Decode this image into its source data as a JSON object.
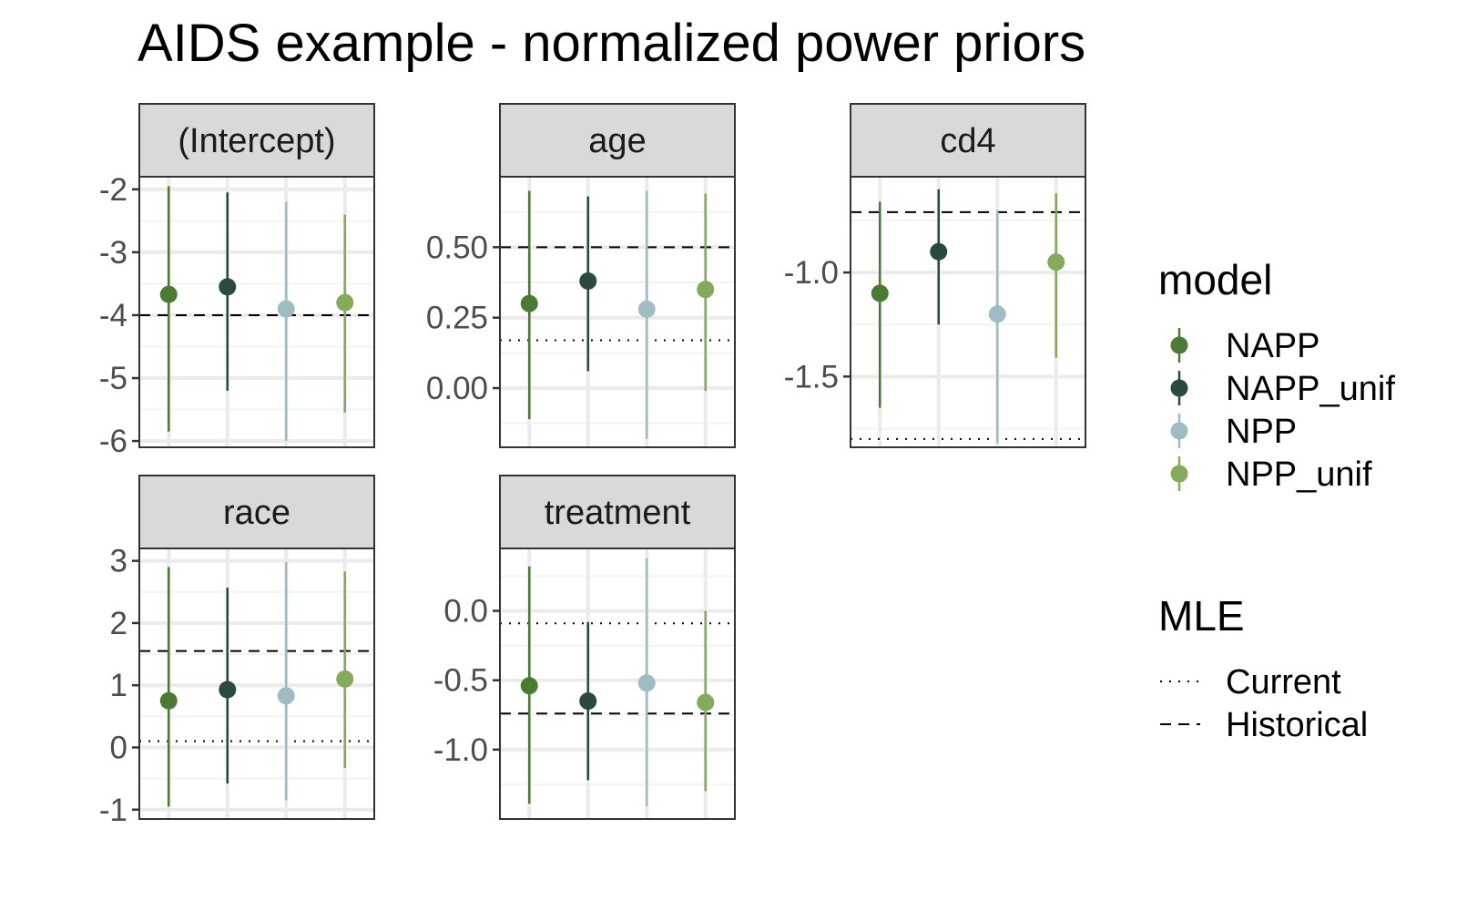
{
  "title": "AIDS example - normalized power priors",
  "colors": {
    "NAPP": "#4a7a34",
    "NAPP_unif": "#2a4a3c",
    "NPP": "#9fbcc2",
    "NPP_unif": "#86aa5c",
    "reference": "#000000",
    "strip_fill": "#d9d9d9",
    "grid_major": "#ebebeb",
    "grid_minor": "#f3f3f3",
    "border": "#333333"
  },
  "chart_data": {
    "type": "pointrange",
    "facet_by": "parameter",
    "models": [
      "NAPP",
      "NAPP_unif",
      "NPP",
      "NPP_unif"
    ],
    "legend": {
      "placement": "right",
      "model_title": "model",
      "model_entries": [
        "NAPP",
        "NAPP_unif",
        "NPP",
        "NPP_unif"
      ],
      "mle_title": "MLE",
      "mle_entries": [
        {
          "label": "Current",
          "linetype": "dotted"
        },
        {
          "label": "Historical",
          "linetype": "dashed"
        }
      ]
    },
    "panels": [
      {
        "name": "(Intercept)",
        "ylim": [
          -6.1,
          -1.8
        ],
        "yticks": [
          -2,
          -3,
          -4,
          -5,
          -6
        ],
        "ytick_labels": [
          "-2",
          "-3",
          "-4",
          "-5",
          "-6"
        ],
        "mle_current": null,
        "mle_historical": -4.0,
        "series": [
          {
            "model": "NAPP",
            "estimate": -3.67,
            "lower": -5.85,
            "upper": -1.95
          },
          {
            "model": "NAPP_unif",
            "estimate": -3.55,
            "lower": -5.2,
            "upper": -2.05
          },
          {
            "model": "NPP",
            "estimate": -3.9,
            "lower": -6.0,
            "upper": -2.2
          },
          {
            "model": "NPP_unif",
            "estimate": -3.8,
            "lower": -5.55,
            "upper": -2.4
          }
        ]
      },
      {
        "name": "age",
        "ylim": [
          -0.21,
          0.75
        ],
        "yticks": [
          0.5,
          0.25,
          0.0
        ],
        "ytick_labels": [
          "0.50",
          "0.25",
          "0.00"
        ],
        "mle_current": 0.17,
        "mle_historical": 0.5,
        "series": [
          {
            "model": "NAPP",
            "estimate": 0.3,
            "lower": -0.11,
            "upper": 0.7
          },
          {
            "model": "NAPP_unif",
            "estimate": 0.38,
            "lower": 0.06,
            "upper": 0.68
          },
          {
            "model": "NPP",
            "estimate": 0.28,
            "lower": -0.18,
            "upper": 0.7
          },
          {
            "model": "NPP_unif",
            "estimate": 0.35,
            "lower": -0.01,
            "upper": 0.69
          }
        ]
      },
      {
        "name": "cd4",
        "ylim": [
          -1.84,
          -0.54
        ],
        "yticks": [
          -1.0,
          -1.5
        ],
        "ytick_labels": [
          "-1.0",
          "-1.5"
        ],
        "mle_current": -1.8,
        "mle_historical": -0.71,
        "series": [
          {
            "model": "NAPP",
            "estimate": -1.1,
            "lower": -1.65,
            "upper": -0.66
          },
          {
            "model": "NAPP_unif",
            "estimate": -0.9,
            "lower": -1.25,
            "upper": -0.6
          },
          {
            "model": "NPP",
            "estimate": -1.2,
            "lower": -1.82,
            "upper": -0.7
          },
          {
            "model": "NPP_unif",
            "estimate": -0.95,
            "lower": -1.41,
            "upper": -0.62
          }
        ]
      },
      {
        "name": "race",
        "ylim": [
          -1.15,
          3.2
        ],
        "yticks": [
          3,
          2,
          1,
          0,
          -1
        ],
        "ytick_labels": [
          "3",
          "2",
          "1",
          "0",
          "-1"
        ],
        "mle_current": 0.1,
        "mle_historical": 1.55,
        "series": [
          {
            "model": "NAPP",
            "estimate": 0.75,
            "lower": -0.95,
            "upper": 2.9
          },
          {
            "model": "NAPP_unif",
            "estimate": 0.93,
            "lower": -0.58,
            "upper": 2.57
          },
          {
            "model": "NPP",
            "estimate": 0.83,
            "lower": -0.85,
            "upper": 2.98
          },
          {
            "model": "NPP_unif",
            "estimate": 1.1,
            "lower": -0.33,
            "upper": 2.83
          }
        ]
      },
      {
        "name": "treatment",
        "ylim": [
          -1.5,
          0.45
        ],
        "yticks": [
          0.0,
          -0.5,
          -1.0
        ],
        "ytick_labels": [
          "0.0",
          "-0.5",
          "-1.0"
        ],
        "mle_current": -0.09,
        "mle_historical": -0.74,
        "series": [
          {
            "model": "NAPP",
            "estimate": -0.54,
            "lower": -1.39,
            "upper": 0.32
          },
          {
            "model": "NAPP_unif",
            "estimate": -0.65,
            "lower": -1.22,
            "upper": -0.08
          },
          {
            "model": "NPP",
            "estimate": -0.52,
            "lower": -1.41,
            "upper": 0.38
          },
          {
            "model": "NPP_unif",
            "estimate": -0.66,
            "lower": -1.3,
            "upper": 0.0
          }
        ]
      }
    ]
  }
}
